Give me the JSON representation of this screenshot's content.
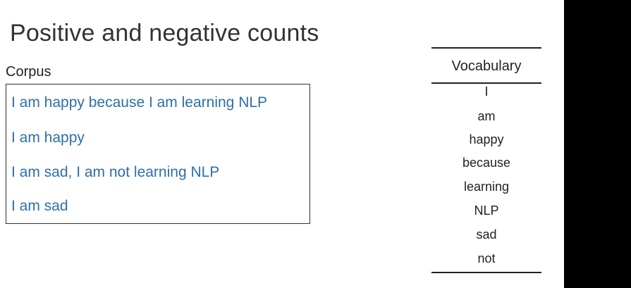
{
  "slide": {
    "title": "Positive and negative counts"
  },
  "corpus": {
    "label": "Corpus",
    "sentences": [
      "I am happy because I am learning NLP",
      "I am happy",
      "I am sad, I am not learning NLP",
      "I am sad"
    ]
  },
  "vocabulary": {
    "header": "Vocabulary",
    "words": [
      "I",
      "am",
      "happy",
      "because",
      "learning",
      "NLP",
      "sad",
      "not"
    ]
  },
  "colors": {
    "sentence_text": "#2e6fa6",
    "body_text": "#222222",
    "right_bar": "#000000"
  }
}
